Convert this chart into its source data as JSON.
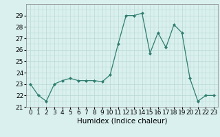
{
  "x": [
    0,
    1,
    2,
    3,
    4,
    5,
    6,
    7,
    8,
    9,
    10,
    11,
    12,
    13,
    14,
    15,
    16,
    17,
    18,
    19,
    20,
    21,
    22,
    23
  ],
  "y": [
    23,
    22,
    21.5,
    23,
    23.3,
    23.5,
    23.3,
    23.3,
    23.3,
    23.2,
    23.8,
    26.5,
    29,
    29,
    29.2,
    25.7,
    27.5,
    26.2,
    28.2,
    27.5,
    23.5,
    21.5,
    22,
    22
  ],
  "line_color": "#2e7d6e",
  "marker": "D",
  "marker_size": 2,
  "bg_color": "#d9f0ee",
  "grid_color": "#b8d8d4",
  "xlabel": "Humidex (Indice chaleur)",
  "xlim": [
    -0.5,
    23.5
  ],
  "ylim": [
    21,
    30
  ],
  "yticks": [
    21,
    22,
    23,
    24,
    25,
    26,
    27,
    28,
    29
  ],
  "xticks": [
    0,
    1,
    2,
    3,
    4,
    5,
    6,
    7,
    8,
    9,
    10,
    11,
    12,
    13,
    14,
    15,
    16,
    17,
    18,
    19,
    20,
    21,
    22,
    23
  ],
  "tick_fontsize": 6.5,
  "xlabel_fontsize": 7.5
}
